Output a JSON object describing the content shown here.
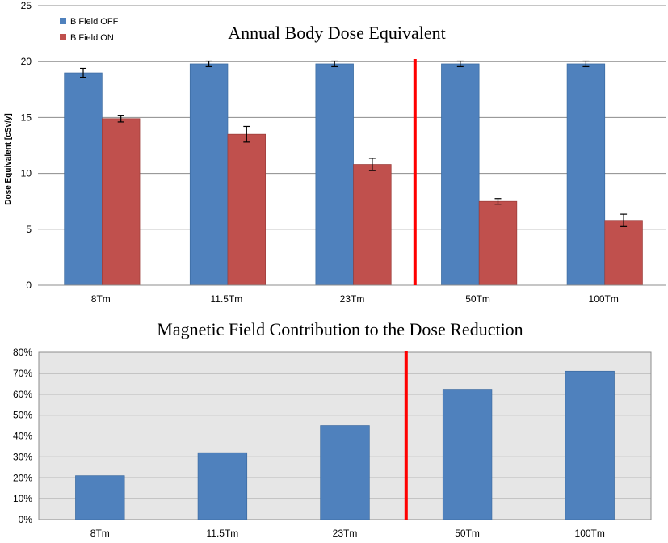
{
  "chart_data": [
    {
      "type": "bar",
      "title": "Annual Body Dose Equivalent",
      "xlabel": "",
      "ylabel": "Dose Equivalent [cSv/y]",
      "ylim": [
        0,
        25
      ],
      "yticks": [
        "0",
        "5",
        "10",
        "15",
        "20",
        "25"
      ],
      "categories": [
        "8Tm",
        "11.5Tm",
        "23Tm",
        "50Tm",
        "100Tm"
      ],
      "series": [
        {
          "name": "B Field OFF",
          "color": "#4f81bd",
          "values": [
            19.0,
            19.8,
            19.8,
            19.8,
            19.8
          ],
          "errors": [
            0.4,
            0.25,
            0.25,
            0.25,
            0.25
          ]
        },
        {
          "name": "B Field ON",
          "color": "#c0504d",
          "values": [
            14.9,
            13.5,
            10.8,
            7.5,
            5.8
          ],
          "errors": [
            0.3,
            0.7,
            0.55,
            0.25,
            0.55
          ]
        }
      ],
      "legend": "top-left",
      "grid": true,
      "divider_color": "#ff0000",
      "divider_after_category": "23Tm"
    },
    {
      "type": "bar",
      "title": "Magnetic Field Contribution to the Dose Reduction",
      "xlabel": "",
      "ylabel": "",
      "ylim": [
        0,
        80
      ],
      "yticks": [
        "0%",
        "10%",
        "20%",
        "30%",
        "40%",
        "50%",
        "60%",
        "70%",
        "80%"
      ],
      "categories": [
        "8Tm",
        "11.5Tm",
        "23Tm",
        "50Tm",
        "100Tm"
      ],
      "series": [
        {
          "name": "Dose Reduction",
          "color": "#4f81bd",
          "values": [
            21,
            32,
            45,
            62,
            71
          ]
        }
      ],
      "grid": true,
      "background": "#e6e6e6",
      "divider_color": "#ff0000",
      "divider_after_category": "23Tm"
    }
  ]
}
